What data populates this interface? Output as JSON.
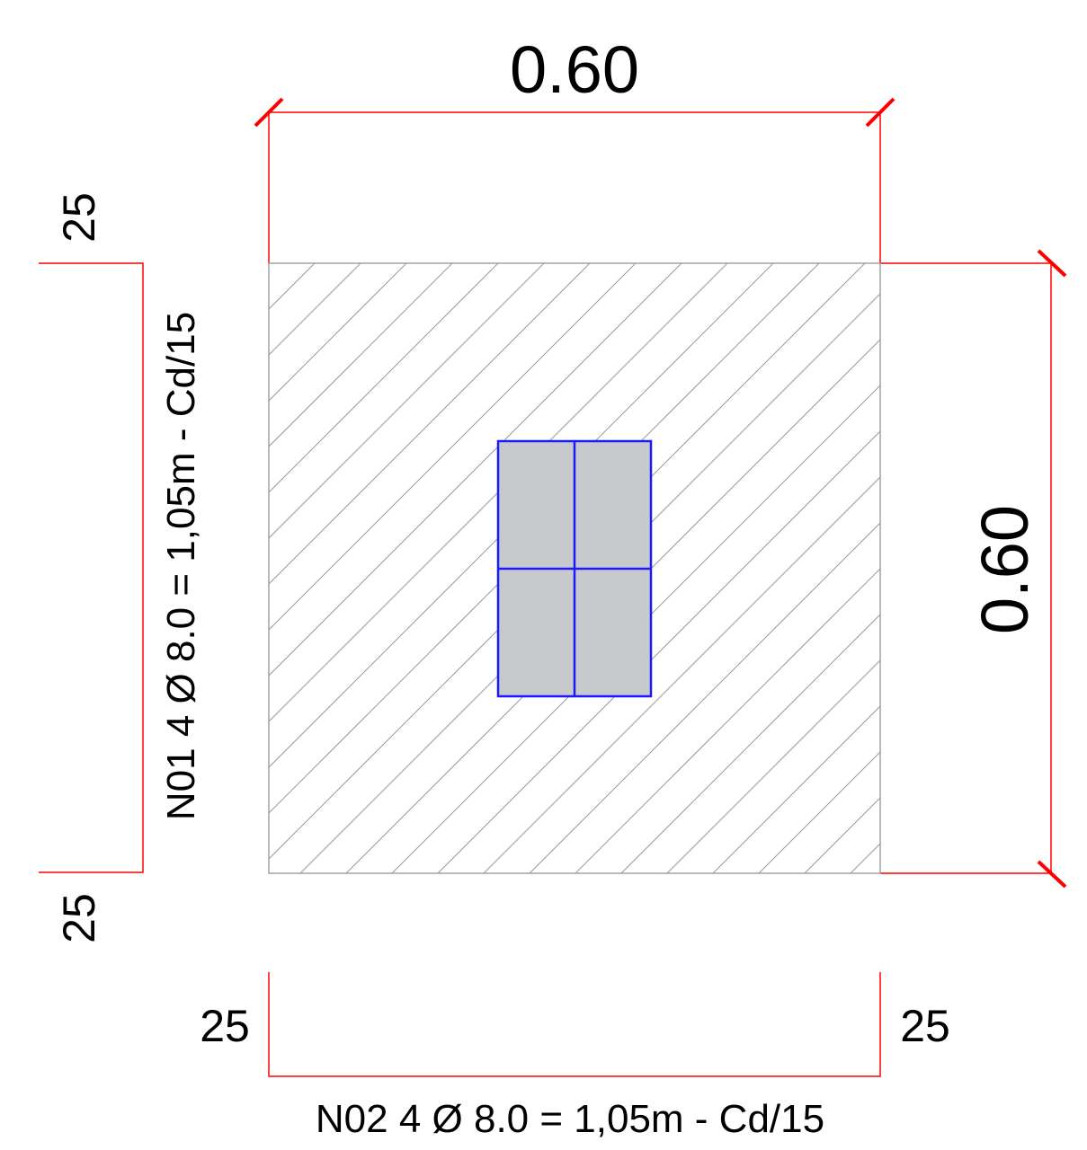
{
  "dimensions": {
    "top_width": "0.60",
    "right_height": "0.60"
  },
  "bar_n01": {
    "label": "N01 4 Ø 8.0 = 1,05m - Cd/15",
    "hook_top": "25",
    "hook_bottom": "25"
  },
  "bar_n02": {
    "label": "N02 4 Ø 8.0 = 1,05m - Cd/15",
    "hook_left": "25",
    "hook_right": "25"
  },
  "colors": {
    "dimension_line": "#ff0000",
    "hatch": "#9a9a9a",
    "column_fill": "#c8c9cc",
    "column_stroke": "#1a1aff",
    "text": "#000000"
  }
}
